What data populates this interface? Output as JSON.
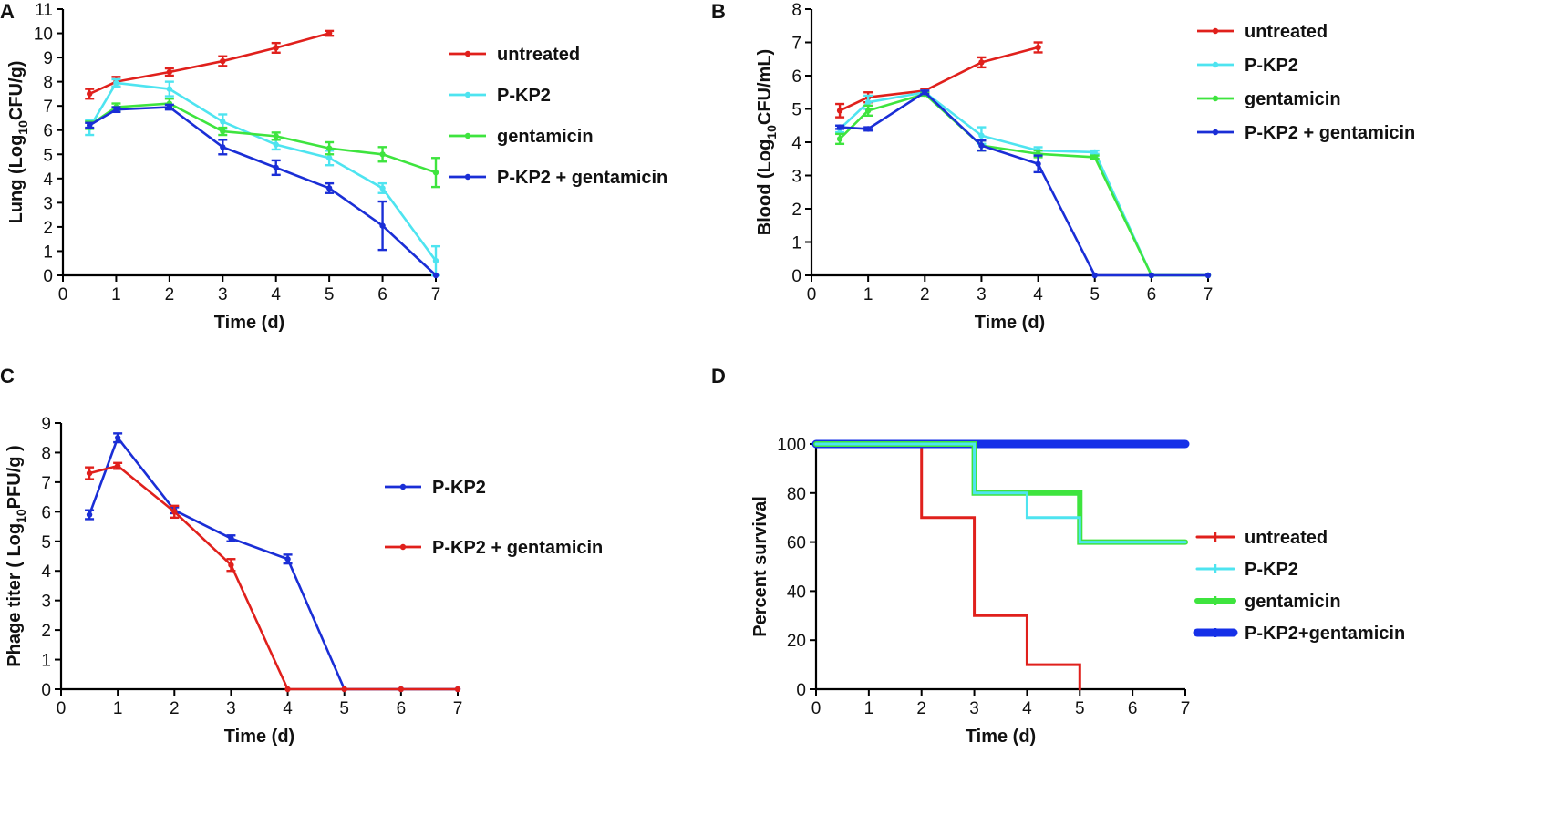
{
  "colors": {
    "untreated": "#e0201c",
    "pkp2": "#4ee4f0",
    "gentamicin": "#3ee43e",
    "combo": "#1a2ed6",
    "combo_survival": "#1530e8"
  },
  "chart_data": [
    {
      "id": "A",
      "panel_label": "A",
      "type": "line",
      "title": "",
      "xlabel": "Time (d)",
      "ylabel_parts": [
        "Lung (Log",
        "10",
        "CFU/g)"
      ],
      "xlim": [
        0,
        7
      ],
      "ylim": [
        0,
        11
      ],
      "xticks": [
        0,
        1,
        2,
        3,
        4,
        5,
        6,
        7
      ],
      "yticks": [
        0,
        1,
        2,
        3,
        4,
        5,
        6,
        7,
        8,
        9,
        10,
        11
      ],
      "legend_position": "top-right",
      "series": [
        {
          "key": "untreated",
          "name": "untreated",
          "color": "#e0201c",
          "x": [
            0.5,
            1,
            2,
            3,
            4,
            5
          ],
          "y": [
            7.5,
            8.0,
            8.4,
            8.85,
            9.4,
            10.0
          ],
          "err": [
            0.2,
            0.2,
            0.15,
            0.2,
            0.2,
            0.1
          ]
        },
        {
          "key": "pkp2",
          "name": "P-KP2",
          "color": "#4ee4f0",
          "x": [
            0.5,
            1,
            2,
            3,
            4,
            5,
            6,
            7
          ],
          "y": [
            6.1,
            7.95,
            7.7,
            6.35,
            5.4,
            4.85,
            3.6,
            0.6
          ],
          "err": [
            0.3,
            0.15,
            0.3,
            0.3,
            0.2,
            0.3,
            0.2,
            0.6
          ]
        },
        {
          "key": "gentamicin",
          "name": "gentamicin",
          "color": "#3ee43e",
          "x": [
            0.5,
            1,
            2,
            3,
            4,
            5,
            6,
            7
          ],
          "y": [
            6.2,
            6.95,
            7.1,
            5.95,
            5.75,
            5.25,
            5.0,
            4.25
          ],
          "err": [
            0.15,
            0.15,
            0.2,
            0.15,
            0.15,
            0.25,
            0.3,
            0.6
          ]
        },
        {
          "key": "combo",
          "name": "P-KP2 + gentamicin",
          "color": "#1a2ed6",
          "x": [
            0.5,
            1,
            2,
            3,
            4,
            5,
            6,
            7
          ],
          "y": [
            6.2,
            6.85,
            6.95,
            5.3,
            4.45,
            3.6,
            2.05,
            0.0
          ],
          "err": [
            0.1,
            0.1,
            0.1,
            0.3,
            0.3,
            0.2,
            1.0,
            0.0
          ]
        }
      ]
    },
    {
      "id": "B",
      "panel_label": "B",
      "type": "line",
      "title": "",
      "xlabel": "Time (d)",
      "ylabel_parts": [
        "Blood (Log",
        "10",
        "CFU/mL)"
      ],
      "xlim": [
        0,
        7
      ],
      "ylim": [
        0,
        8
      ],
      "xticks": [
        0,
        1,
        2,
        3,
        4,
        5,
        6,
        7
      ],
      "yticks": [
        0,
        1,
        2,
        3,
        4,
        5,
        6,
        7,
        8
      ],
      "legend_position": "top-right",
      "series": [
        {
          "key": "untreated",
          "name": "untreated",
          "color": "#e0201c",
          "x": [
            0.5,
            1,
            2,
            3,
            4
          ],
          "y": [
            4.95,
            5.35,
            5.55,
            6.4,
            6.85
          ],
          "err": [
            0.2,
            0.15,
            0.05,
            0.15,
            0.15
          ]
        },
        {
          "key": "pkp2",
          "name": "P-KP2",
          "color": "#4ee4f0",
          "x": [
            0.5,
            1,
            2,
            3,
            4,
            5,
            6,
            7
          ],
          "y": [
            4.4,
            5.2,
            5.5,
            4.2,
            3.75,
            3.7,
            0,
            0
          ],
          "err": [
            0.1,
            0.2,
            0.05,
            0.25,
            0.1,
            0.05,
            0,
            0
          ]
        },
        {
          "key": "gentamicin",
          "name": "gentamicin",
          "color": "#3ee43e",
          "x": [
            0.5,
            1,
            2,
            3,
            4,
            5,
            6,
            7
          ],
          "y": [
            4.1,
            4.95,
            5.45,
            3.9,
            3.65,
            3.55,
            0,
            0
          ],
          "err": [
            0.15,
            0.15,
            0.05,
            0.15,
            0.1,
            0.05,
            0,
            0
          ]
        },
        {
          "key": "combo",
          "name": "P-KP2 + gentamicin",
          "color": "#1a2ed6",
          "x": [
            0.5,
            1,
            2,
            3,
            4,
            5,
            6,
            7
          ],
          "y": [
            4.45,
            4.4,
            5.5,
            3.9,
            3.35,
            0,
            0,
            0
          ],
          "err": [
            0.05,
            0.05,
            0.05,
            0.15,
            0.25,
            0,
            0,
            0
          ]
        }
      ]
    },
    {
      "id": "C",
      "panel_label": "C",
      "type": "line",
      "title": "",
      "xlabel": "Time (d)",
      "ylabel_parts": [
        "Phage titer ( Log",
        "10",
        "PFU/g )"
      ],
      "xlim": [
        0,
        7
      ],
      "ylim": [
        0,
        9
      ],
      "xticks": [
        0,
        1,
        2,
        3,
        4,
        5,
        6,
        7
      ],
      "yticks": [
        0,
        1,
        2,
        3,
        4,
        5,
        6,
        7,
        8,
        9
      ],
      "legend_position": "middle-right",
      "series": [
        {
          "key": "combo",
          "name": "P-KP2",
          "color": "#1a2ed6",
          "x": [
            0.5,
            1,
            2,
            3,
            4,
            5,
            6,
            7
          ],
          "y": [
            5.9,
            8.5,
            6.05,
            5.1,
            4.4,
            0,
            0,
            0
          ],
          "err": [
            0.15,
            0.15,
            0.1,
            0.1,
            0.15,
            0,
            0,
            0
          ]
        },
        {
          "key": "untreated",
          "name": "P-KP2 + gentamicin",
          "color": "#e0201c",
          "x": [
            0.5,
            1,
            2,
            3,
            4,
            5,
            6,
            7
          ],
          "y": [
            7.3,
            7.55,
            6.0,
            4.2,
            0,
            0,
            0,
            0
          ],
          "err": [
            0.2,
            0.1,
            0.2,
            0.2,
            0,
            0,
            0,
            0
          ]
        }
      ]
    },
    {
      "id": "D",
      "panel_label": "D",
      "type": "step",
      "title": "",
      "xlabel": "Time (d)",
      "ylabel_parts": [
        "Percent survival"
      ],
      "xlim": [
        0,
        7
      ],
      "ylim": [
        0,
        100
      ],
      "xticks": [
        0,
        1,
        2,
        3,
        4,
        5,
        6,
        7
      ],
      "yticks": [
        0,
        20,
        40,
        60,
        80,
        100
      ],
      "legend_position": "bottom-right",
      "series": [
        {
          "key": "untreated",
          "name": "untreated",
          "color": "#e0201c",
          "width": 3,
          "x": [
            0,
            2,
            3,
            4,
            5
          ],
          "y": [
            100,
            70,
            30,
            10,
            0
          ]
        },
        {
          "key": "combo",
          "name": "P-KP2+gentamicin",
          "color": "#1530e8",
          "width": 9,
          "x": [
            0,
            7
          ],
          "y": [
            100,
            100
          ]
        },
        {
          "key": "gentamicin",
          "name": "gentamicin",
          "color": "#3ee43e",
          "width": 6,
          "x": [
            0,
            3,
            5,
            7
          ],
          "y": [
            100,
            80,
            60,
            60
          ]
        },
        {
          "key": "pkp2",
          "name": "P-KP2",
          "color": "#4ee4f0",
          "width": 3,
          "x": [
            0,
            3,
            4,
            5,
            7
          ],
          "y": [
            100,
            80,
            70,
            60,
            60
          ]
        }
      ],
      "legend_order": [
        "untreated",
        "pkp2",
        "gentamicin",
        "combo"
      ]
    }
  ]
}
